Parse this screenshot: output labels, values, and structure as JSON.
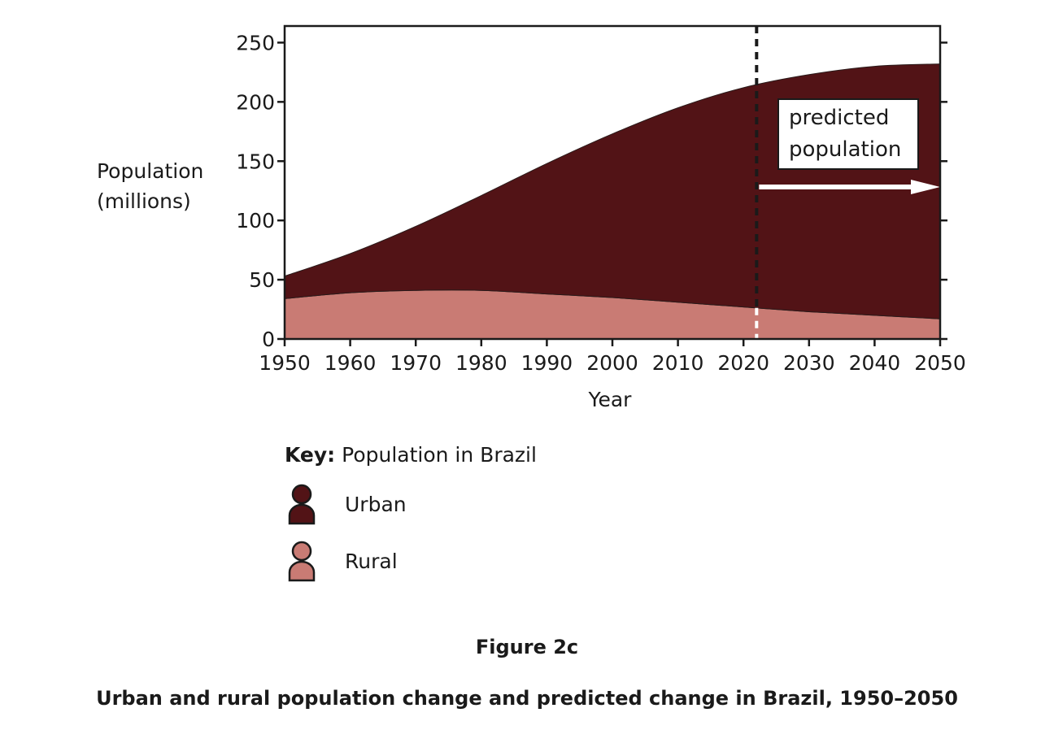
{
  "chart_data": {
    "type": "area",
    "stacked": true,
    "xlabel": "Year",
    "ylabel": "Population (millions)",
    "ylabel_lines": [
      "Population",
      "(millions)"
    ],
    "x": [
      1950,
      1960,
      1970,
      1980,
      1990,
      2000,
      2010,
      2020,
      2030,
      2040,
      2050
    ],
    "xlim": [
      1950,
      2050
    ],
    "ylim": [
      0,
      264
    ],
    "xticks": [
      1950,
      1960,
      1970,
      1980,
      1990,
      2000,
      2010,
      2020,
      2030,
      2040,
      2050
    ],
    "yticks": [
      0,
      50,
      100,
      150,
      200,
      250
    ],
    "series": [
      {
        "name": "Rural",
        "color": "#c97b74",
        "values": [
          34,
          39,
          41,
          41,
          38,
          35,
          31,
          27,
          23,
          20,
          17
        ]
      },
      {
        "name": "Urban",
        "color": "#521316",
        "values": [
          19,
          33,
          54,
          80,
          110,
          138,
          164,
          185,
          200,
          210,
          215
        ]
      }
    ],
    "prediction_start_year": 2022,
    "annotation": {
      "lines": [
        "predicted",
        "population"
      ]
    },
    "grid": false
  },
  "key": {
    "prefix": "Key:",
    "title": "Population in Brazil",
    "items": [
      {
        "label": "Urban",
        "icon": "person-icon",
        "color": "#521316"
      },
      {
        "label": "Rural",
        "icon": "person-icon",
        "color": "#c97b74"
      }
    ]
  },
  "figure": {
    "label": "Figure 2c",
    "caption": "Urban and rural population change and predicted change in Brazil, 1950–2050"
  }
}
